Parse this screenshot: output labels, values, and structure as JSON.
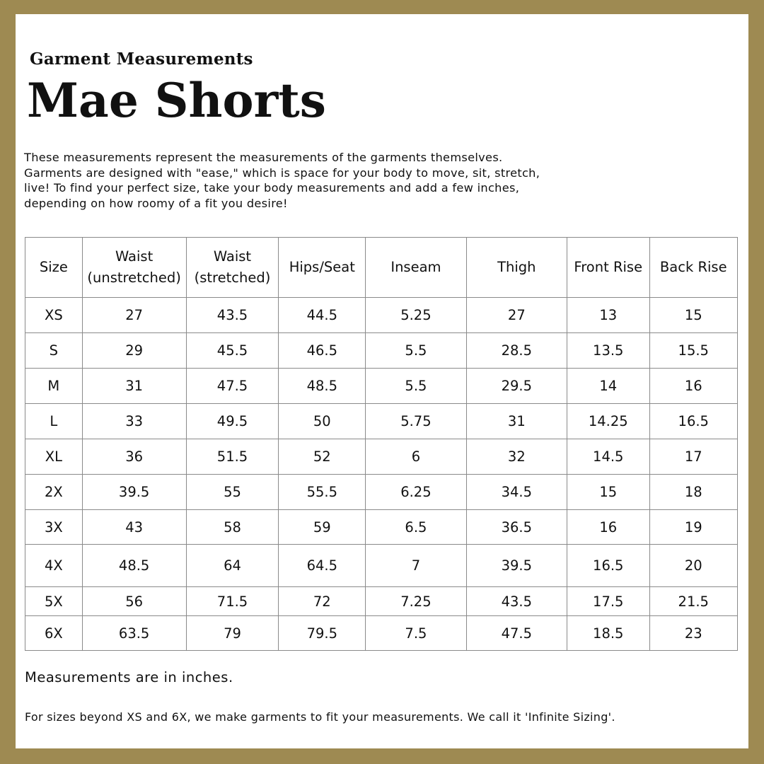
{
  "colors": {
    "frame": "#9e8a52",
    "background": "#ffffff",
    "text": "#111111"
  },
  "subtitle": "Garment Measurements",
  "title": "Mae Shorts",
  "intro": "These measurements represent the measurements of the garments themselves. Garments are designed with \"ease,\" which is space for your body to move, sit, stretch, live! To find your perfect size, take your body measurements and add a few inches, depending on how roomy of a fit you desire!",
  "table": {
    "headers": [
      [
        "Size",
        ""
      ],
      [
        "Waist",
        "(unstretched)"
      ],
      [
        "Waist",
        "(stretched)"
      ],
      [
        "Hips/Seat",
        ""
      ],
      [
        "Inseam",
        ""
      ],
      [
        "Thigh",
        ""
      ],
      [
        "Front Rise",
        ""
      ],
      [
        "Back Rise",
        ""
      ]
    ],
    "rows": [
      [
        "XS",
        "27",
        "43.5",
        "44.5",
        "5.25",
        "27",
        "13",
        "15"
      ],
      [
        "S",
        "29",
        "45.5",
        "46.5",
        "5.5",
        "28.5",
        "13.5",
        "15.5"
      ],
      [
        "M",
        "31",
        "47.5",
        "48.5",
        "5.5",
        "29.5",
        "14",
        "16"
      ],
      [
        "L",
        "33",
        "49.5",
        "50",
        "5.75",
        "31",
        "14.25",
        "16.5"
      ],
      [
        "XL",
        "36",
        "51.5",
        "52",
        "6",
        "32",
        "14.5",
        "17"
      ],
      [
        "2X",
        "39.5",
        "55",
        "55.5",
        "6.25",
        "34.5",
        "15",
        "18"
      ],
      [
        "3X",
        "43",
        "58",
        "59",
        "6.5",
        "36.5",
        "16",
        "19"
      ],
      [
        "4X",
        "48.5",
        "64",
        "64.5",
        "7",
        "39.5",
        "16.5",
        "20"
      ],
      [
        "5X",
        "56",
        "71.5",
        "72",
        "7.25",
        "43.5",
        "17.5",
        "21.5"
      ],
      [
        "6X",
        "63.5",
        "79",
        "79.5",
        "7.5",
        "47.5",
        "18.5",
        "23"
      ]
    ]
  },
  "note_units": "Measurements are in inches.",
  "note_sizing": "For sizes beyond XS and 6X, we make garments to fit your measurements. We call it 'Infinite Sizing'."
}
